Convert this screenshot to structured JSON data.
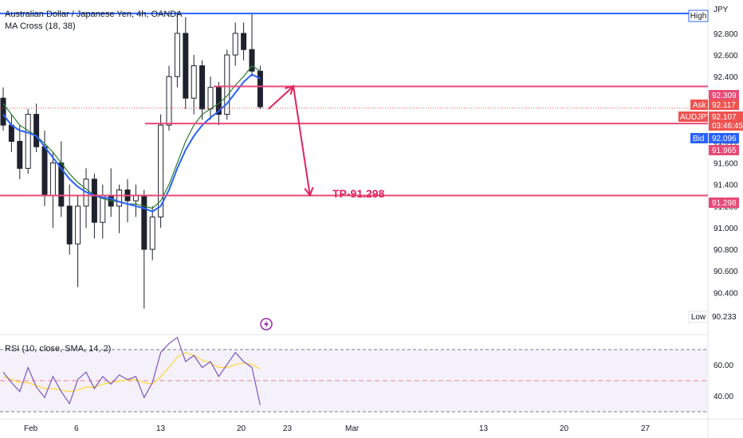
{
  "header": {
    "symbol_title": "Australian Dollar / Japanese Yen, 4h, OANDA",
    "ma_label": "MA Cross (18, 38)",
    "rsi_label": "RSI (10, close, SMA, 14, 2)"
  },
  "price_axis": {
    "currency": "JPY",
    "ticks": [
      "92.800",
      "92.600",
      "92.400",
      "92.000",
      "91.800",
      "91.600",
      "91.400",
      "91.200",
      "91.000",
      "90.800",
      "90.600",
      "90.400"
    ],
    "tick_values": [
      92.8,
      92.6,
      92.4,
      92.0,
      91.8,
      91.6,
      91.4,
      91.2,
      91.0,
      90.8,
      90.6,
      90.4
    ]
  },
  "rsi_axis": {
    "ticks": [
      "60.00",
      "40.00"
    ],
    "tick_values": [
      60,
      40
    ]
  },
  "time_axis": {
    "labels": [
      "Feb",
      "6",
      "13",
      "20",
      "23",
      "Mar",
      "13",
      "20",
      "27"
    ]
  },
  "markers": {
    "high_label": "High",
    "low_label": "Low",
    "low_value": "90.233",
    "ask_label": "Ask",
    "ask_value": "92.117",
    "bid_label": "Bid",
    "bid_value": "92.096",
    "symbol_tag": "AUDJPY",
    "last_price": "92.107",
    "countdown": "03:46:45",
    "level_upper": "92.309",
    "level_middle": "91.965",
    "level_tp": "91.298"
  },
  "annotation": {
    "tp_text": "TP-91.298"
  },
  "colors": {
    "up": "#26a69a",
    "down": "#ef5350",
    "candle": "#1e222d",
    "ma_fast": "#2962ff",
    "ma_slow": "#2e7d32",
    "level": "#e84a77",
    "arrow": "#e0245e",
    "high_line": "#2962ff",
    "rsi": "#7e57c2",
    "rsi_ma": "#fdd835",
    "ask_bg": "#ef5350",
    "bid_bg": "#2962ff"
  },
  "chart_data": {
    "type": "candlestick",
    "price_ylim": [
      90.1,
      93.05
    ],
    "high_value": 92.985,
    "levels": [
      92.309,
      91.965,
      91.298
    ],
    "candles": [
      {
        "o": 92.2,
        "h": 92.3,
        "l": 91.9,
        "c": 91.95
      },
      {
        "o": 91.95,
        "h": 92.05,
        "l": 91.7,
        "c": 91.8
      },
      {
        "o": 91.8,
        "h": 91.95,
        "l": 91.45,
        "c": 91.55
      },
      {
        "o": 91.55,
        "h": 92.1,
        "l": 91.5,
        "c": 92.05
      },
      {
        "o": 92.05,
        "h": 92.15,
        "l": 91.7,
        "c": 91.75
      },
      {
        "o": 91.75,
        "h": 91.9,
        "l": 91.2,
        "c": 91.3
      },
      {
        "o": 91.3,
        "h": 91.7,
        "l": 91.0,
        "c": 91.6
      },
      {
        "o": 91.6,
        "h": 91.8,
        "l": 91.1,
        "c": 91.2
      },
      {
        "o": 91.2,
        "h": 91.4,
        "l": 90.75,
        "c": 90.85
      },
      {
        "o": 90.85,
        "h": 91.3,
        "l": 90.45,
        "c": 91.2
      },
      {
        "o": 91.2,
        "h": 91.55,
        "l": 91.0,
        "c": 91.45
      },
      {
        "o": 91.45,
        "h": 91.5,
        "l": 90.9,
        "c": 91.05
      },
      {
        "o": 91.05,
        "h": 91.4,
        "l": 90.9,
        "c": 91.3
      },
      {
        "o": 91.3,
        "h": 91.55,
        "l": 91.1,
        "c": 91.2
      },
      {
        "o": 91.2,
        "h": 91.4,
        "l": 90.95,
        "c": 91.35
      },
      {
        "o": 91.35,
        "h": 91.45,
        "l": 91.05,
        "c": 91.25
      },
      {
        "o": 91.25,
        "h": 91.4,
        "l": 91.1,
        "c": 91.3
      },
      {
        "o": 91.3,
        "h": 91.35,
        "l": 90.25,
        "c": 90.8
      },
      {
        "o": 90.8,
        "h": 91.2,
        "l": 90.7,
        "c": 91.1
      },
      {
        "o": 91.1,
        "h": 92.05,
        "l": 91.0,
        "c": 91.95
      },
      {
        "o": 91.95,
        "h": 92.5,
        "l": 91.9,
        "c": 92.4
      },
      {
        "o": 92.4,
        "h": 93.0,
        "l": 92.3,
        "c": 92.8
      },
      {
        "o": 92.8,
        "h": 92.95,
        "l": 92.1,
        "c": 92.2
      },
      {
        "o": 92.2,
        "h": 92.6,
        "l": 92.05,
        "c": 92.5
      },
      {
        "o": 92.5,
        "h": 92.55,
        "l": 92.0,
        "c": 92.1
      },
      {
        "o": 92.1,
        "h": 92.4,
        "l": 92.0,
        "c": 92.3
      },
      {
        "o": 92.3,
        "h": 92.35,
        "l": 91.95,
        "c": 92.05
      },
      {
        "o": 92.05,
        "h": 92.65,
        "l": 92.0,
        "c": 92.6
      },
      {
        "o": 92.6,
        "h": 92.9,
        "l": 92.5,
        "c": 92.8
      },
      {
        "o": 92.8,
        "h": 92.9,
        "l": 92.55,
        "c": 92.65
      },
      {
        "o": 92.65,
        "h": 92.98,
        "l": 92.4,
        "c": 92.45
      },
      {
        "o": 92.45,
        "h": 92.5,
        "l": 92.1,
        "c": 92.12
      }
    ],
    "ma_fast": [
      92.05,
      91.95,
      91.9,
      91.88,
      91.85,
      91.75,
      91.65,
      91.55,
      91.45,
      91.38,
      91.33,
      91.3,
      91.28,
      91.27,
      91.24,
      91.22,
      91.2,
      91.18,
      91.15,
      91.2,
      91.35,
      91.55,
      91.72,
      91.85,
      91.95,
      92.02,
      92.08,
      92.15,
      92.25,
      92.35,
      92.42,
      92.38
    ],
    "ma_slow": [
      92.15,
      92.05,
      91.95,
      91.9,
      91.85,
      91.78,
      91.7,
      91.6,
      91.5,
      91.42,
      91.36,
      91.3,
      91.27,
      91.25,
      91.24,
      91.22,
      91.22,
      91.2,
      91.18,
      91.25,
      91.4,
      91.6,
      91.8,
      91.95,
      92.05,
      92.1,
      92.15,
      92.22,
      92.32,
      92.4,
      92.5,
      92.45
    ],
    "rsi": [
      55,
      48,
      42,
      58,
      45,
      38,
      52,
      42,
      34,
      50,
      55,
      44,
      52,
      47,
      53,
      50,
      52,
      38,
      48,
      68,
      74,
      78,
      62,
      66,
      58,
      62,
      52,
      60,
      68,
      62,
      58,
      33
    ],
    "rsi_ma": [
      52,
      50,
      48,
      48,
      46,
      44,
      44,
      43,
      42,
      43,
      45,
      45,
      47,
      48,
      49,
      50,
      50,
      48,
      47,
      52,
      58,
      65,
      68,
      66,
      63,
      61,
      58,
      58,
      60,
      61,
      60,
      57
    ],
    "rsi_ylim": [
      27,
      80
    ],
    "projection": [
      {
        "x": 32,
        "y": 92.1
      },
      {
        "x": 35,
        "y": 92.31
      },
      {
        "x": 37,
        "y": 91.3
      }
    ]
  }
}
